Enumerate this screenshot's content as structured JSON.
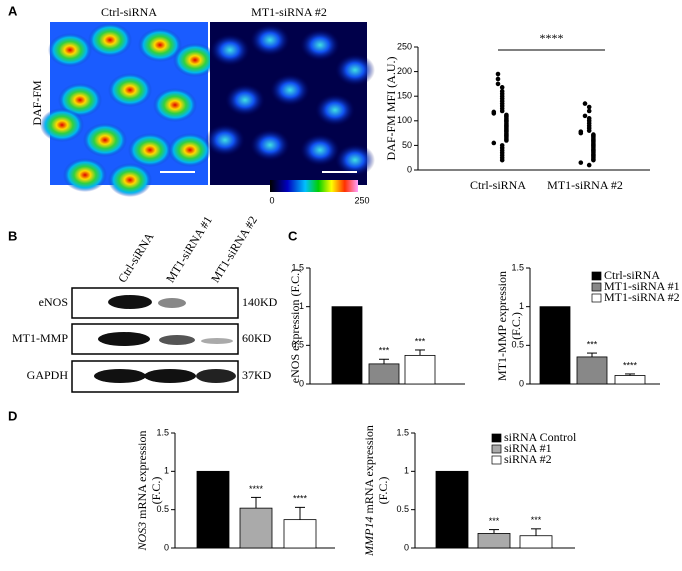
{
  "panel_labels": [
    "A",
    "B",
    "C",
    "D"
  ],
  "imaging": {
    "ylabel": "DAF-FM",
    "conditions": [
      "Ctrl-siRNA",
      "MT1-siRNA #2"
    ],
    "colorbar_ticks": [
      0,
      250
    ]
  },
  "blot": {
    "lanes": [
      "Ctrl-siRNA",
      "MT1-siRNA #1",
      "MT1-siRNA #2"
    ],
    "rows": [
      {
        "protein": "eNOS",
        "size": "140KD"
      },
      {
        "protein": "MT1-MMP",
        "size": "60KD"
      },
      {
        "protein": "GAPDH",
        "size": "37KD"
      }
    ]
  },
  "chart_data": [
    {
      "type": "strip",
      "ylabel": [
        "DAF-FM MFI (A.U.)"
      ],
      "categories": [
        "Ctrl-siRNA",
        "MT1-siRNA #2"
      ],
      "annotation": "****",
      "color": "#000000",
      "values": [
        [
          195,
          185,
          175,
          168,
          160,
          155,
          150,
          145,
          140,
          135,
          130,
          125,
          120,
          118,
          115,
          112,
          110,
          108,
          105,
          102,
          100,
          98,
          95,
          92,
          90,
          88,
          85,
          82,
          80,
          78,
          75,
          72,
          70,
          68,
          65,
          62,
          60,
          55,
          50,
          45,
          40,
          35,
          30,
          25,
          20
        ],
        [
          135,
          128,
          120,
          110,
          105,
          100,
          95,
          90,
          85,
          80,
          78,
          75,
          72,
          70,
          68,
          65,
          62,
          60,
          58,
          55,
          52,
          50,
          48,
          45,
          42,
          40,
          38,
          35,
          32,
          30,
          28,
          25,
          22,
          20,
          15,
          10
        ]
      ],
      "ylim": [
        0,
        250
      ],
      "yticks": [
        0,
        50,
        100,
        150,
        200,
        250
      ]
    },
    {
      "type": "bar",
      "ylabel": [
        "eNOS expression (F.C.)"
      ],
      "values": [
        1,
        0.26,
        0.37
      ],
      "errors": [
        null,
        0.06,
        0.07
      ],
      "significance": [
        null,
        "***",
        "***"
      ],
      "colors": [
        "#000000",
        "#888888",
        "#ffffff"
      ],
      "ylim": [
        0,
        1.5
      ],
      "yticks": [
        0,
        0.5,
        1,
        1.5
      ]
    },
    {
      "type": "bar",
      "ylabel": [
        "MT1-MMP expression",
        "(F.C.)"
      ],
      "values": [
        1,
        0.35,
        0.11
      ],
      "errors": [
        null,
        0.05,
        0.02
      ],
      "significance": [
        null,
        "***",
        "****"
      ],
      "colors": [
        "#000000",
        "#888888",
        "#ffffff"
      ],
      "legend": [
        "Ctrl-siRNA",
        "MT1-siRNA #1",
        "MT1-siRNA #2"
      ],
      "ylim": [
        0,
        1.5
      ],
      "yticks": [
        0,
        0.5,
        1,
        1.5
      ]
    },
    {
      "type": "bar",
      "gene": "NOS3",
      "ylabel": [
        " mRNA expression",
        "(F.C.)"
      ],
      "values": [
        1,
        0.52,
        0.37
      ],
      "errors": [
        null,
        0.14,
        0.16
      ],
      "significance": [
        null,
        "****",
        "****"
      ],
      "colors": [
        "#000000",
        "#aaaaaa",
        "#ffffff"
      ],
      "ylim": [
        0,
        1.5
      ],
      "yticks": [
        0,
        0.5,
        1,
        1.5
      ]
    },
    {
      "type": "bar",
      "gene": "MMP14",
      "ylabel": [
        " mRNA expression",
        "(F.C.)"
      ],
      "values": [
        1,
        0.19,
        0.16
      ],
      "errors": [
        null,
        0.05,
        0.09
      ],
      "significance": [
        null,
        "***",
        "***"
      ],
      "colors": [
        "#000000",
        "#aaaaaa",
        "#ffffff"
      ],
      "legend": [
        "siRNA Control",
        "siRNA #1",
        "siRNA #2"
      ],
      "ylim": [
        0,
        1.5
      ],
      "yticks": [
        0,
        0.5,
        1,
        1.5
      ]
    }
  ]
}
